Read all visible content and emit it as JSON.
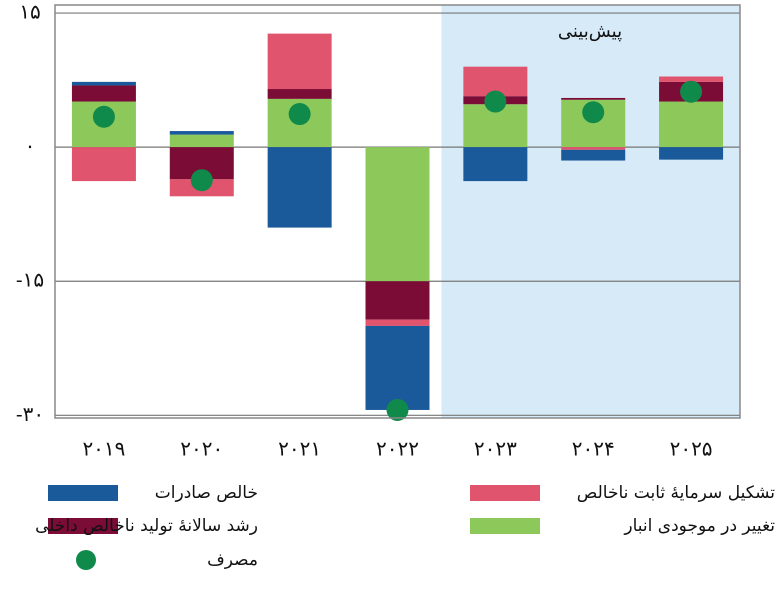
{
  "chart_data": {
    "type": "stacked-bar",
    "categories": [
      "۲۰۱۹",
      "۲۰۲۰",
      "۲۰۲۱",
      "۲۰۲۲",
      "۲۰۲۳",
      "۲۰۲۴",
      "۲۰۲۵"
    ],
    "forecast_label": "پیش‌بینی",
    "series": [
      {
        "name": "تغییر در موجودی انبار",
        "color": "#8cc85a",
        "values": [
          5.1,
          1.4,
          5.4,
          -15,
          4.8,
          5.3,
          5.1
        ]
      },
      {
        "name": "رشد سالانهٔ تولید ناخالص داخلی",
        "color": "#7b0c35",
        "values": [
          1.8,
          -3.6,
          1.1,
          -4.3,
          0.9,
          0.2,
          2.2
        ]
      },
      {
        "name": "تشکیل سرمایهٔ ثابت ناخالص",
        "color": "#e0546d",
        "values": [
          -3.8,
          -1.9,
          6.2,
          -0.7,
          3.3,
          -0.3,
          0.6
        ]
      },
      {
        "name": "خالص صادرات",
        "color": "#1b5a9a",
        "values": [
          0.4,
          0.4,
          -9.0,
          -9.4,
          -3.8,
          -1.2,
          -1.4
        ]
      },
      {
        "name": "مصرف",
        "color": "#0f8a4a",
        "type": "scatter",
        "values": [
          3.4,
          -3.7,
          3.7,
          -29.4,
          5.1,
          3.9,
          6.2
        ]
      }
    ],
    "ylim": [
      -30.3,
      15.9
    ],
    "yticks": [
      {
        "value": 15,
        "label": "۱۵"
      },
      {
        "value": 0,
        "label": "۰"
      },
      {
        "value": -15,
        "label": "-۱۵"
      },
      {
        "value": -30,
        "label": "-۳۰"
      }
    ],
    "grid": true
  }
}
